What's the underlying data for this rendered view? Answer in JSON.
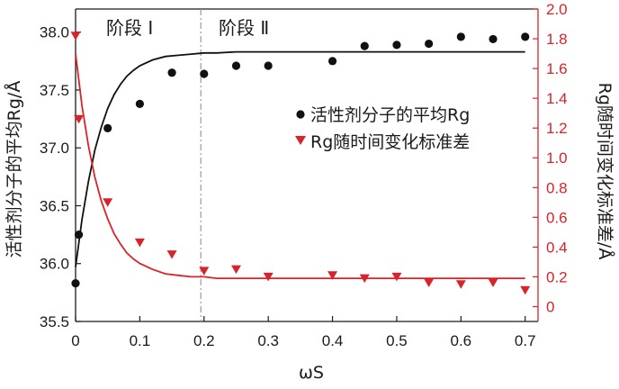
{
  "chart_data": {
    "type": "scatter",
    "xlabel": "ωS",
    "xlim": [
      0,
      0.72
    ],
    "xticks": [
      "0",
      "0.1",
      "0.2",
      "0.3",
      "0.4",
      "0.5",
      "0.6",
      "0.7"
    ],
    "ylabel_left": "活性剂分子的平均Rg/Å",
    "ylim_left": [
      35.5,
      38.2
    ],
    "yticks_left": [
      "35.5",
      "36.0",
      "36.5",
      "37.0",
      "37.5",
      "38.0"
    ],
    "ylabel_right": "Rg随时间变化标准差/Å",
    "ylim_right": [
      -0.1,
      2.0
    ],
    "yticks_right": [
      "0",
      "0.2",
      "0.4",
      "0.6",
      "0.8",
      "1.0",
      "1.2",
      "1.4",
      "1.6",
      "1.8",
      "2.0"
    ],
    "stage_labels": [
      "阶段 Ⅰ",
      "阶段 Ⅱ"
    ],
    "stage_divider_x": 0.195,
    "grid": false,
    "legend_position": "center-right",
    "series": [
      {
        "name": "活性剂分子的平均Rg",
        "axis": "left",
        "marker": "circle",
        "color": "#111111",
        "x": [
          0.0,
          0.005,
          0.05,
          0.1,
          0.15,
          0.2,
          0.25,
          0.3,
          0.4,
          0.45,
          0.5,
          0.55,
          0.6,
          0.65,
          0.7
        ],
        "y": [
          35.83,
          36.25,
          37.17,
          37.38,
          37.65,
          37.64,
          37.71,
          37.71,
          37.75,
          37.88,
          37.89,
          37.9,
          37.96,
          37.94,
          37.96
        ],
        "fit_x": [
          0.0,
          0.01,
          0.02,
          0.03,
          0.04,
          0.05,
          0.06,
          0.07,
          0.08,
          0.09,
          0.1,
          0.12,
          0.14,
          0.16,
          0.18,
          0.2,
          0.22,
          0.25,
          0.3,
          0.4,
          0.5,
          0.6,
          0.7
        ],
        "fit_y": [
          35.97,
          36.38,
          36.71,
          36.98,
          37.18,
          37.34,
          37.46,
          37.55,
          37.62,
          37.67,
          37.71,
          37.76,
          37.79,
          37.8,
          37.81,
          37.82,
          37.82,
          37.83,
          37.83,
          37.83,
          37.83,
          37.83,
          37.83
        ]
      },
      {
        "name": "Rg随时间变化标准差",
        "axis": "right",
        "marker": "triangle-down",
        "color": "#d8232a",
        "x": [
          0.0,
          0.005,
          0.05,
          0.1,
          0.15,
          0.2,
          0.25,
          0.3,
          0.4,
          0.45,
          0.5,
          0.55,
          0.6,
          0.65,
          0.7
        ],
        "y": [
          1.82,
          1.26,
          0.7,
          0.43,
          0.35,
          0.24,
          0.25,
          0.2,
          0.21,
          0.19,
          0.2,
          0.16,
          0.15,
          0.16,
          0.11
        ],
        "fit_x": [
          0.0,
          0.01,
          0.02,
          0.03,
          0.04,
          0.05,
          0.06,
          0.07,
          0.08,
          0.09,
          0.1,
          0.12,
          0.14,
          0.16,
          0.18,
          0.2,
          0.22,
          0.25,
          0.3,
          0.4,
          0.5,
          0.6,
          0.7
        ],
        "fit_y": [
          1.7,
          1.35,
          1.08,
          0.87,
          0.71,
          0.59,
          0.49,
          0.42,
          0.36,
          0.32,
          0.29,
          0.25,
          0.22,
          0.21,
          0.2,
          0.2,
          0.19,
          0.19,
          0.19,
          0.19,
          0.19,
          0.19,
          0.19
        ]
      }
    ]
  }
}
